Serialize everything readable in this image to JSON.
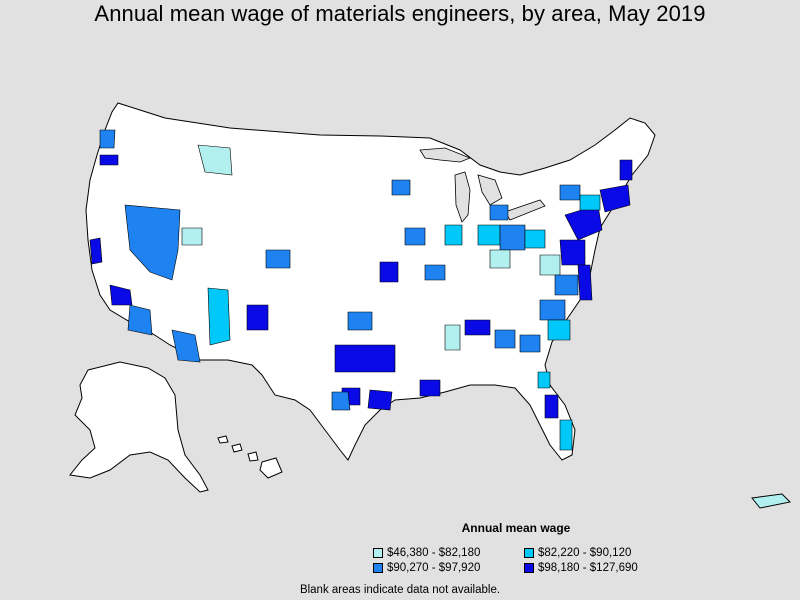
{
  "title": "Annual mean wage of materials engineers, by area, May 2019",
  "legend": {
    "title": "Annual mean wage",
    "items": [
      {
        "label": "$46,380 - $82,180",
        "color": "#b2f0f0"
      },
      {
        "label": "$82,220 - $90,120",
        "color": "#00c8f8"
      },
      {
        "label": "$90,270 - $97,920",
        "color": "#1e82f0"
      },
      {
        "label": "$98,180 - $127,690",
        "color": "#0a0ae6"
      }
    ]
  },
  "note": "Blank areas indicate data not available.",
  "colors": {
    "background": "#e1e1e1",
    "land": "#ffffff",
    "border": "#000000"
  }
}
